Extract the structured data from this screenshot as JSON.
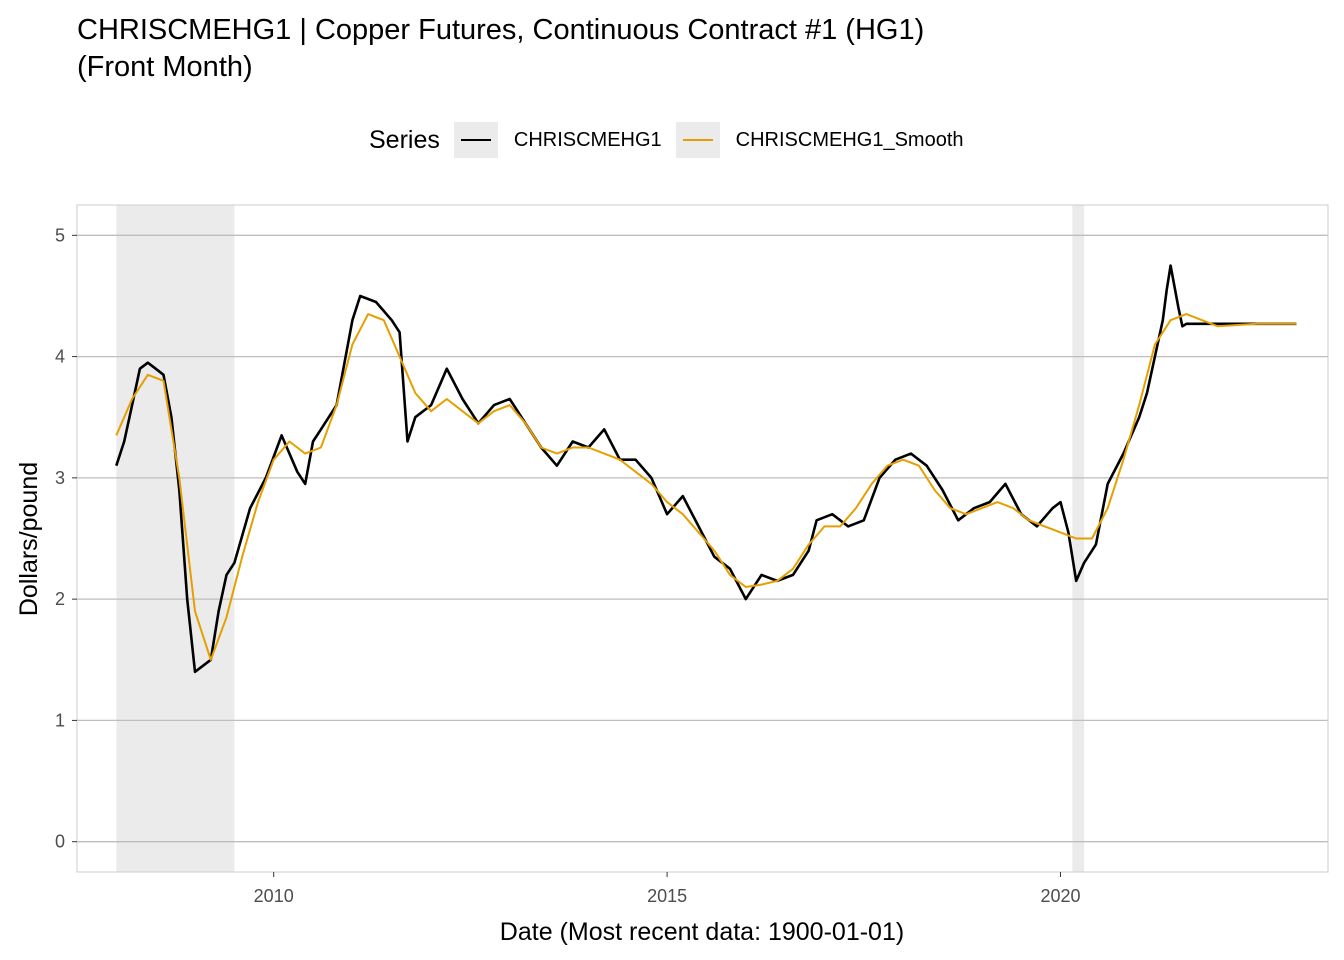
{
  "chart_data": {
    "type": "line",
    "title_line1": "CHRISCMEHG1 | Copper Futures, Continuous Contract #1 (HG1)",
    "title_line2": "(Front Month)",
    "xlabel": "Date (Most recent data: 1900-01-01)",
    "ylabel": "Dollars/pound",
    "xlim": [
      2007.5,
      2023.4
    ],
    "ylim": [
      -0.25,
      5.25
    ],
    "x_ticks": [
      2010,
      2015,
      2020
    ],
    "y_ticks": [
      0,
      1,
      2,
      3,
      4,
      5
    ],
    "legend_title": "Series",
    "legend_position": "top",
    "grid": true,
    "shaded_regions": [
      [
        2008.0,
        2009.5
      ],
      [
        2020.15,
        2020.3
      ]
    ],
    "series": [
      {
        "name": "CHRISCMEHG1",
        "color": "#000000",
        "x": [
          2008.0,
          2008.1,
          2008.2,
          2008.3,
          2008.4,
          2008.5,
          2008.6,
          2008.7,
          2008.8,
          2008.9,
          2009.0,
          2009.1,
          2009.2,
          2009.3,
          2009.4,
          2009.5,
          2009.7,
          2009.9,
          2010.1,
          2010.3,
          2010.4,
          2010.5,
          2010.6,
          2010.8,
          2011.0,
          2011.1,
          2011.3,
          2011.5,
          2011.6,
          2011.7,
          2011.8,
          2012.0,
          2012.2,
          2012.4,
          2012.6,
          2012.8,
          2013.0,
          2013.2,
          2013.4,
          2013.6,
          2013.8,
          2014.0,
          2014.2,
          2014.4,
          2014.6,
          2014.8,
          2015.0,
          2015.2,
          2015.4,
          2015.6,
          2015.8,
          2016.0,
          2016.2,
          2016.4,
          2016.6,
          2016.8,
          2016.9,
          2017.1,
          2017.3,
          2017.5,
          2017.7,
          2017.9,
          2018.1,
          2018.3,
          2018.5,
          2018.7,
          2018.9,
          2019.1,
          2019.3,
          2019.5,
          2019.7,
          2019.9,
          2020.0,
          2020.1,
          2020.2,
          2020.3,
          2020.45,
          2020.6,
          2020.8,
          2021.0,
          2021.1,
          2021.2,
          2021.3,
          2021.35,
          2021.4,
          2021.5,
          2021.55,
          2021.6,
          2021.8,
          2022.0,
          2022.5,
          2023.0
        ],
        "y": [
          3.1,
          3.3,
          3.6,
          3.9,
          3.95,
          3.9,
          3.85,
          3.5,
          2.9,
          2.0,
          1.4,
          1.45,
          1.5,
          1.9,
          2.2,
          2.3,
          2.75,
          3.0,
          3.35,
          3.05,
          2.95,
          3.3,
          3.4,
          3.6,
          4.3,
          4.5,
          4.45,
          4.3,
          4.2,
          3.3,
          3.5,
          3.6,
          3.9,
          3.65,
          3.45,
          3.6,
          3.65,
          3.45,
          3.25,
          3.1,
          3.3,
          3.25,
          3.4,
          3.15,
          3.15,
          3.0,
          2.7,
          2.85,
          2.6,
          2.35,
          2.25,
          2.0,
          2.2,
          2.15,
          2.2,
          2.4,
          2.65,
          2.7,
          2.6,
          2.65,
          3.0,
          3.15,
          3.2,
          3.1,
          2.9,
          2.65,
          2.75,
          2.8,
          2.95,
          2.7,
          2.6,
          2.75,
          2.8,
          2.55,
          2.15,
          2.3,
          2.45,
          2.95,
          3.2,
          3.5,
          3.7,
          4.0,
          4.3,
          4.55,
          4.75,
          4.4,
          4.25,
          4.27,
          4.27,
          4.27,
          4.27,
          4.27
        ]
      },
      {
        "name": "CHRISCMEHG1_Smooth",
        "color": "#E69F00",
        "x": [
          2008.0,
          2008.2,
          2008.4,
          2008.6,
          2008.8,
          2009.0,
          2009.2,
          2009.4,
          2009.6,
          2009.8,
          2010.0,
          2010.2,
          2010.4,
          2010.6,
          2010.8,
          2011.0,
          2011.2,
          2011.4,
          2011.6,
          2011.8,
          2012.0,
          2012.2,
          2012.4,
          2012.6,
          2012.8,
          2013.0,
          2013.2,
          2013.4,
          2013.6,
          2013.8,
          2014.0,
          2014.2,
          2014.4,
          2014.6,
          2014.8,
          2015.0,
          2015.2,
          2015.4,
          2015.6,
          2015.8,
          2016.0,
          2016.2,
          2016.4,
          2016.6,
          2016.8,
          2017.0,
          2017.2,
          2017.4,
          2017.6,
          2017.8,
          2018.0,
          2018.2,
          2018.4,
          2018.6,
          2018.8,
          2019.0,
          2019.2,
          2019.4,
          2019.6,
          2019.8,
          2020.0,
          2020.2,
          2020.4,
          2020.6,
          2020.8,
          2021.0,
          2021.2,
          2021.4,
          2021.6,
          2021.8,
          2022.0,
          2022.5,
          2023.0
        ],
        "y": [
          3.35,
          3.65,
          3.85,
          3.8,
          3.0,
          1.9,
          1.5,
          1.85,
          2.35,
          2.8,
          3.15,
          3.3,
          3.2,
          3.25,
          3.6,
          4.1,
          4.35,
          4.3,
          4.0,
          3.7,
          3.55,
          3.65,
          3.55,
          3.45,
          3.55,
          3.6,
          3.45,
          3.25,
          3.2,
          3.25,
          3.25,
          3.2,
          3.15,
          3.05,
          2.95,
          2.8,
          2.7,
          2.55,
          2.4,
          2.2,
          2.1,
          2.12,
          2.15,
          2.25,
          2.45,
          2.6,
          2.6,
          2.75,
          2.95,
          3.1,
          3.15,
          3.1,
          2.9,
          2.75,
          2.7,
          2.75,
          2.8,
          2.75,
          2.65,
          2.6,
          2.55,
          2.5,
          2.5,
          2.75,
          3.15,
          3.6,
          4.1,
          4.3,
          4.35,
          4.3,
          4.25,
          4.27,
          4.27
        ]
      }
    ]
  }
}
